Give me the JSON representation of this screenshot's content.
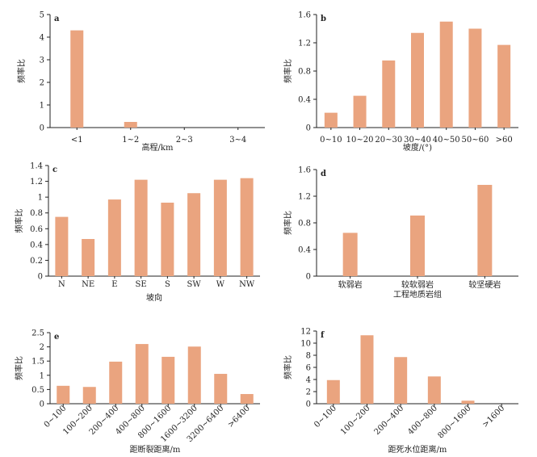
{
  "bar_color": "#eaa47f",
  "axis_color": "#222222",
  "chart_data": [
    {
      "type": "bar",
      "panel": "a",
      "categories": [
        "<1",
        "1~2",
        "2~3",
        "3~4"
      ],
      "values": [
        4.3,
        0.25,
        0,
        0
      ],
      "xlabel": "高程/km",
      "ylabel": "频率比",
      "ylim": [
        0,
        5
      ],
      "yticks": [
        0,
        1,
        2,
        3,
        4,
        5
      ],
      "grid": false
    },
    {
      "type": "bar",
      "panel": "b",
      "categories": [
        "0~10",
        "10~20",
        "20~30",
        "30~40",
        "40~50",
        "50~60",
        ">60"
      ],
      "values": [
        0.21,
        0.45,
        0.95,
        1.34,
        1.5,
        1.4,
        1.17
      ],
      "xlabel": "坡度/(°)",
      "ylabel": "频率比",
      "ylim": [
        0,
        1.6
      ],
      "yticks": [
        0,
        0.4,
        0.8,
        1.2,
        1.6
      ],
      "grid": false
    },
    {
      "type": "bar",
      "panel": "c",
      "categories": [
        "N",
        "NE",
        "E",
        "SE",
        "S",
        "SW",
        "W",
        "NW"
      ],
      "values": [
        0.75,
        0.47,
        0.97,
        1.22,
        0.93,
        1.05,
        1.22,
        1.24
      ],
      "xlabel": "坡向",
      "ylabel": "频率比",
      "ylim": [
        0,
        1.4
      ],
      "yticks": [
        0,
        0.2,
        0.4,
        0.6,
        0.8,
        1.0,
        1.2,
        1.4
      ],
      "grid": false
    },
    {
      "type": "bar",
      "panel": "d",
      "categories": [
        "软弱岩",
        "较软弱岩",
        "较坚硬岩"
      ],
      "values": [
        0.65,
        0.91,
        1.37
      ],
      "xlabel": "工程地质岩组",
      "ylabel": "频率比",
      "ylim": [
        0,
        1.6
      ],
      "yticks": [
        0,
        0.4,
        0.8,
        1.2,
        1.6
      ],
      "grid": false
    },
    {
      "type": "bar",
      "panel": "e",
      "categories": [
        "0~100",
        "100~200",
        "200~400",
        "400~800",
        "800~1600",
        "1600~3200",
        "3200~6400",
        ">6400"
      ],
      "values": [
        0.63,
        0.59,
        1.48,
        2.1,
        1.65,
        2.01,
        1.05,
        0.34
      ],
      "xlabel": "距断裂距离/m",
      "ylabel": "频率比",
      "ylim": [
        0,
        2.5
      ],
      "yticks": [
        0,
        0.5,
        1.0,
        1.5,
        2.0,
        2.5
      ],
      "grid": false
    },
    {
      "type": "bar",
      "panel": "f",
      "categories": [
        "0~100",
        "100~200",
        "200~400",
        "400~800",
        "800~1600",
        ">1600"
      ],
      "values": [
        3.9,
        11.3,
        7.7,
        4.5,
        0.5,
        0
      ],
      "xlabel": "距死水位距离/m",
      "ylabel": "频率比",
      "ylim": [
        0,
        12
      ],
      "yticks": [
        0,
        2,
        4,
        6,
        8,
        10,
        12
      ],
      "grid": false
    }
  ]
}
